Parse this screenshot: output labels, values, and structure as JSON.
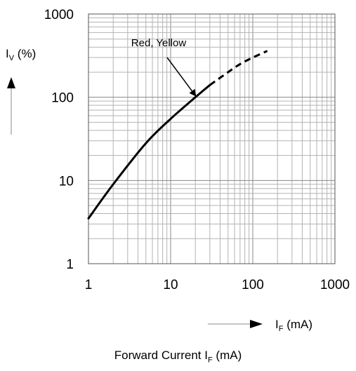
{
  "chart_data": {
    "type": "line",
    "title": "",
    "scale": {
      "x": "log",
      "y": "log"
    },
    "xlim": [
      1,
      1000
    ],
    "ylim": [
      1,
      1000
    ],
    "x_ticks": [
      "1",
      "10",
      "100",
      "1000"
    ],
    "y_ticks": [
      "1",
      "10",
      "100",
      "1000"
    ],
    "grid": true,
    "ylabel": {
      "main": "I",
      "sub": "V",
      "rest": " (%)"
    },
    "xlabel": {
      "main": "I",
      "sub": "F",
      "rest": " (mA)"
    },
    "bottom_title": {
      "main": "Forward Current I",
      "sub": "F",
      "rest": " (mA)"
    },
    "series": [
      {
        "name": "Red, Yellow",
        "solid": {
          "x": [
            1,
            2,
            5,
            10,
            20,
            30
          ],
          "y": [
            3.5,
            9,
            28,
            55,
            100,
            140
          ]
        },
        "dashed": {
          "x": [
            30,
            50,
            70,
            100,
            150
          ],
          "y": [
            140,
            200,
            250,
            300,
            360
          ]
        }
      }
    ],
    "annotation": {
      "text": "Red, Yellow",
      "points_to": {
        "x": 20,
        "y": 105
      }
    }
  }
}
